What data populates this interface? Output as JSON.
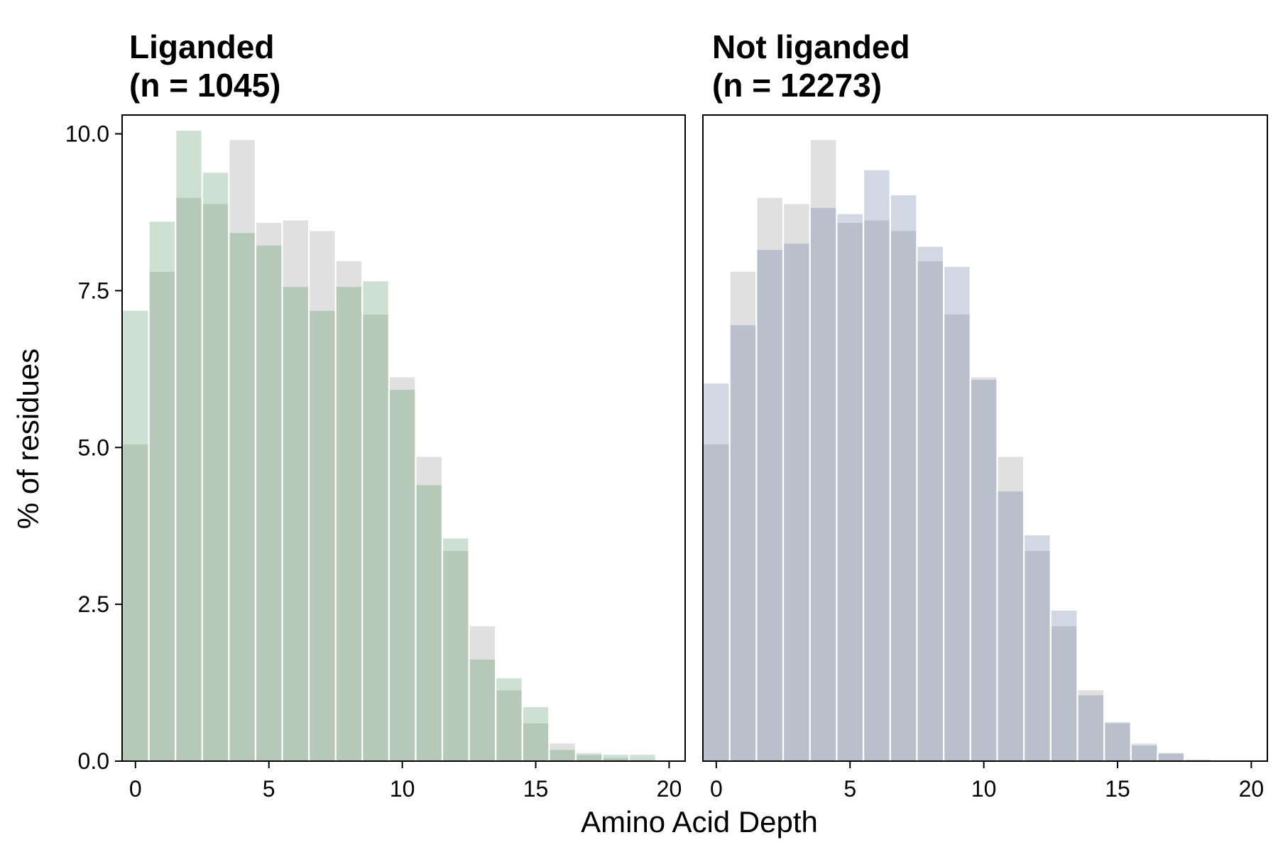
{
  "chart_data": [
    {
      "type": "bar",
      "title_line1": "Liganded",
      "title_line2": "(n = 1045)",
      "x_bins": [
        0,
        1,
        2,
        3,
        4,
        5,
        6,
        7,
        8,
        9,
        10,
        11,
        12,
        13,
        14,
        15,
        16,
        17,
        18,
        19
      ],
      "series": [
        {
          "role": "background",
          "color": "#e0e0e0",
          "values": [
            5.05,
            7.8,
            8.98,
            8.88,
            9.9,
            8.58,
            8.62,
            8.45,
            7.97,
            7.12,
            6.12,
            4.85,
            3.35,
            2.15,
            1.13,
            0.6,
            0.28,
            0.13,
            0.05,
            0.02
          ]
        },
        {
          "role": "foreground",
          "color": "#cde0d2",
          "values": [
            7.18,
            8.6,
            10.05,
            9.38,
            8.42,
            8.22,
            7.56,
            7.18,
            7.56,
            7.65,
            5.92,
            4.4,
            3.55,
            1.62,
            1.32,
            0.86,
            0.18,
            0.1,
            0.1,
            0.1
          ]
        }
      ],
      "xlim": [
        -0.5,
        20.6
      ],
      "ylim": [
        0,
        10.3
      ],
      "xticks": [
        0,
        5,
        10,
        15,
        20
      ],
      "yticks": [
        0.0,
        2.5,
        5.0,
        7.5,
        10.0
      ],
      "ytick_labels": [
        "0.0",
        "2.5",
        "5.0",
        "7.5",
        "10.0"
      ]
    },
    {
      "type": "bar",
      "title_line1": "Not liganded",
      "title_line2": "(n = 12273)",
      "x_bins": [
        0,
        1,
        2,
        3,
        4,
        5,
        6,
        7,
        8,
        9,
        10,
        11,
        12,
        13,
        14,
        15,
        16,
        17,
        18,
        19
      ],
      "series": [
        {
          "role": "background",
          "color": "#e0e0e0",
          "values": [
            5.05,
            7.8,
            8.98,
            8.88,
            9.9,
            8.58,
            8.62,
            8.45,
            7.97,
            7.12,
            6.12,
            4.85,
            3.35,
            2.15,
            1.13,
            0.6,
            0.28,
            0.13,
            0.02,
            0.0
          ]
        },
        {
          "role": "foreground",
          "color": "#d1d8e4",
          "values": [
            6.02,
            6.95,
            8.15,
            8.25,
            8.82,
            8.72,
            9.42,
            9.02,
            8.2,
            7.88,
            6.08,
            4.3,
            3.6,
            2.4,
            1.05,
            0.62,
            0.25,
            0.12,
            0.02,
            0.0
          ]
        }
      ],
      "xlim": [
        -0.5,
        20.6
      ],
      "ylim": [
        0,
        10.3
      ],
      "xticks": [
        0,
        5,
        10,
        15,
        20
      ],
      "yticks": [
        0.0,
        2.5,
        5.0,
        7.5,
        10.0
      ],
      "ytick_labels": [
        "0.0",
        "2.5",
        "5.0",
        "7.5",
        "10.0"
      ]
    }
  ],
  "xlabel": "Amino Acid Depth",
  "ylabel": "% of residues",
  "overlap_color": {
    "liganded": "#b6c8b8",
    "not_liganded": "#b9bfcb"
  }
}
